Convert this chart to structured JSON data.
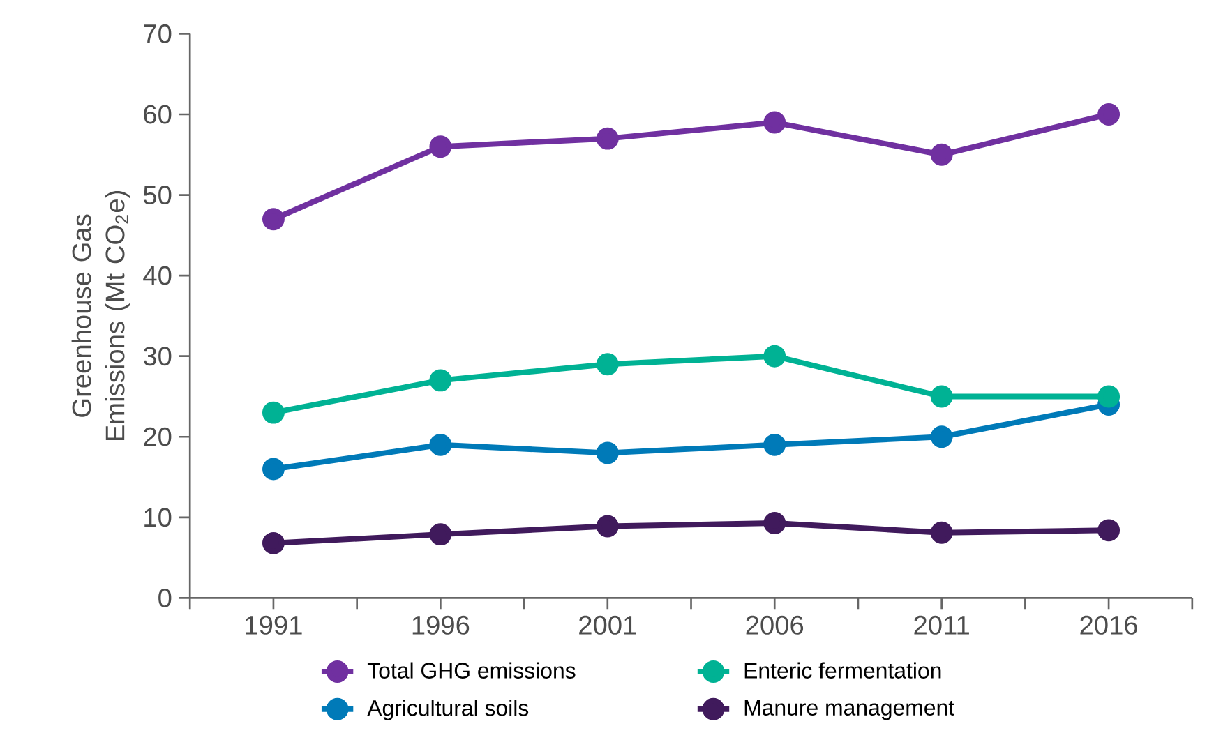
{
  "chart_data": {
    "type": "line",
    "ylabel": "Greenhouse Gas Emissions (Mt CO$_{2}$e)",
    "categories": [
      "1991",
      "1996",
      "2001",
      "2006",
      "2011",
      "2016"
    ],
    "series": [
      {
        "name": "Total GHG emissions",
        "color": "#7030a0",
        "values": [
          47,
          56,
          57,
          59,
          55,
          60
        ]
      },
      {
        "name": "Enteric fermentation",
        "color": "#00b294",
        "values": [
          23,
          27,
          29,
          30,
          25,
          25
        ]
      },
      {
        "name": "Agricultural soils",
        "color": "#007ab8",
        "values": [
          16,
          19,
          18,
          19,
          20,
          24
        ]
      },
      {
        "name": "Manure management",
        "color": "#401a5c",
        "values": [
          6.8,
          7.9,
          8.9,
          9.3,
          8.1,
          8.4
        ]
      }
    ],
    "ylim": [
      0,
      70
    ],
    "yticks": [
      0,
      10,
      20,
      30,
      40,
      50,
      60,
      70
    ],
    "grid": false,
    "legend": "bottom",
    "marker": "circle",
    "line_style": "solid"
  }
}
